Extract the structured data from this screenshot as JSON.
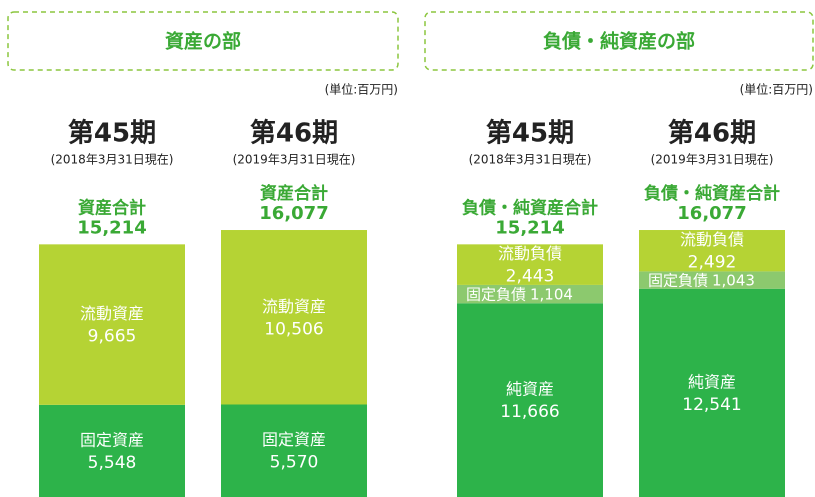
{
  "chart_data": [
    {
      "type": "stacked_bar",
      "title": "資産の部",
      "unit": "(単位:百万円)",
      "categories": [
        "第45期",
        "第46期"
      ],
      "dates": [
        "(2018年3月31日現在)",
        "(2019年3月31日現在)"
      ],
      "total_label": "資産合計",
      "totals": [
        15214,
        16077
      ],
      "total_labels": [
        "15,214",
        "16,077"
      ],
      "series": [
        {
          "name": "固定資産",
          "color": "#2db34a",
          "values": [
            5548,
            5570
          ],
          "value_labels": [
            "5,548",
            "5,570"
          ]
        },
        {
          "name": "流動資産",
          "color": "#b5d334",
          "values": [
            9665,
            10506
          ],
          "value_labels": [
            "9,665",
            "10,506"
          ]
        }
      ]
    },
    {
      "type": "stacked_bar",
      "title": "負債・純資産の部",
      "unit": "(単位:百万円)",
      "categories": [
        "第45期",
        "第46期"
      ],
      "dates": [
        "(2018年3月31日現在)",
        "(2019年3月31日現在)"
      ],
      "total_label": "負債・純資産合計",
      "totals": [
        15214,
        16077
      ],
      "total_labels": [
        "15,214",
        "16,077"
      ],
      "series": [
        {
          "name": "純資産",
          "color": "#2db34a",
          "values": [
            11666,
            12541
          ],
          "value_labels": [
            "11,666",
            "12,541"
          ]
        },
        {
          "name": "固定負債",
          "color": "#8cc96e",
          "values": [
            1104,
            1043
          ],
          "value_labels": [
            "1,104",
            "1,043"
          ],
          "label_inline": true
        },
        {
          "name": "流動負債",
          "color": "#b5d334",
          "values": [
            2443,
            2492
          ],
          "value_labels": [
            "2,443",
            "2,492"
          ]
        }
      ]
    }
  ]
}
